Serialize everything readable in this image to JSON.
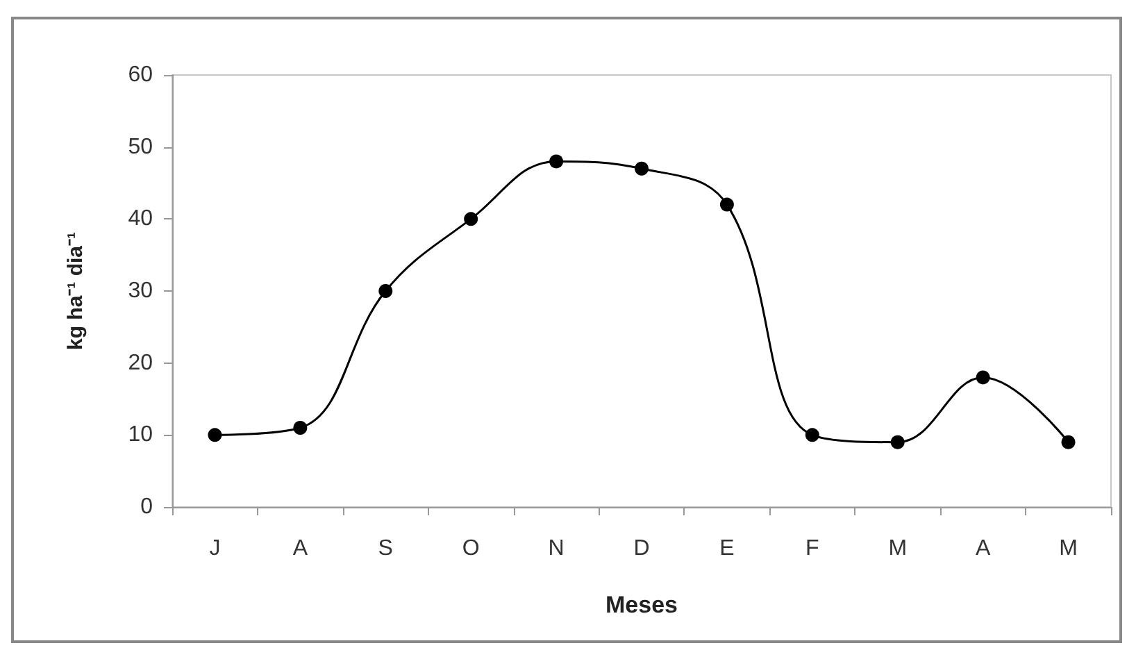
{
  "chart_data": {
    "type": "line",
    "xlabel": "Meses",
    "ylabel": "kg ha⁻¹ dia⁻¹",
    "categories": [
      "J",
      "A",
      "S",
      "O",
      "N",
      "D",
      "E",
      "F",
      "M",
      "A",
      "M"
    ],
    "series": [
      {
        "color": "#000000",
        "values": [
          10,
          11,
          30,
          40,
          48,
          47,
          42,
          10,
          9,
          18,
          9
        ]
      }
    ],
    "ylim": [
      0,
      60
    ],
    "yticks": [
      0,
      10,
      20,
      30,
      40,
      50,
      60
    ],
    "grid": false,
    "marker": "circle",
    "line_style": "solid"
  }
}
